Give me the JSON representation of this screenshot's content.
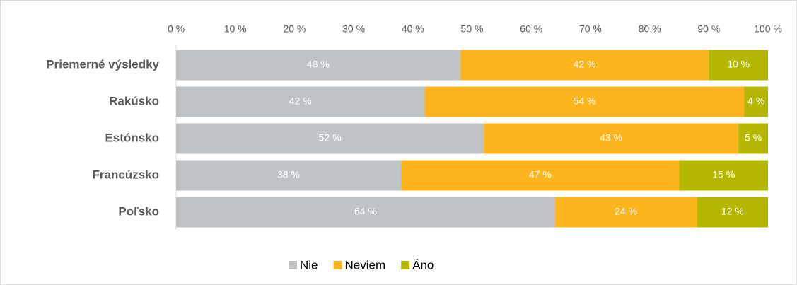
{
  "chart_data": {
    "type": "stacked-bar-horizontal",
    "categories": [
      "Priemerné výsledky",
      "Rakúsko",
      "Estónsko",
      "Francúzsko",
      "Poľsko"
    ],
    "series": [
      {
        "name": "Nie",
        "color": "#c0c3c6",
        "values": [
          48,
          42,
          52,
          38,
          64
        ],
        "value_labels": [
          "48 %",
          "42 %",
          "52 %",
          "38 %",
          "64 %"
        ]
      },
      {
        "name": "Neviem",
        "color": "#fdb51e",
        "values": [
          42,
          54,
          43,
          47,
          24
        ],
        "value_labels": [
          "42 %",
          "54 %",
          "43 %",
          "47 %",
          "24 %"
        ]
      },
      {
        "name": "Áno",
        "color": "#b5b700",
        "values": [
          10,
          4,
          5,
          15,
          12
        ],
        "value_labels": [
          "10 %",
          "4 %",
          "5 %",
          "15 %",
          "12 %"
        ]
      }
    ],
    "xlim": [
      0,
      100
    ],
    "xticks": [
      {
        "value": 0,
        "label": "0 %"
      },
      {
        "value": 10,
        "label": "10 %"
      },
      {
        "value": 20,
        "label": "20 %"
      },
      {
        "value": 30,
        "label": "30 %"
      },
      {
        "value": 40,
        "label": "40 %"
      },
      {
        "value": 50,
        "label": "50 %"
      },
      {
        "value": 60,
        "label": "60 %"
      },
      {
        "value": 70,
        "label": "70 %"
      },
      {
        "value": 80,
        "label": "80 %"
      },
      {
        "value": 90,
        "label": "90 %"
      },
      {
        "value": 100,
        "label": "100 %"
      }
    ],
    "legend": "bottom"
  }
}
